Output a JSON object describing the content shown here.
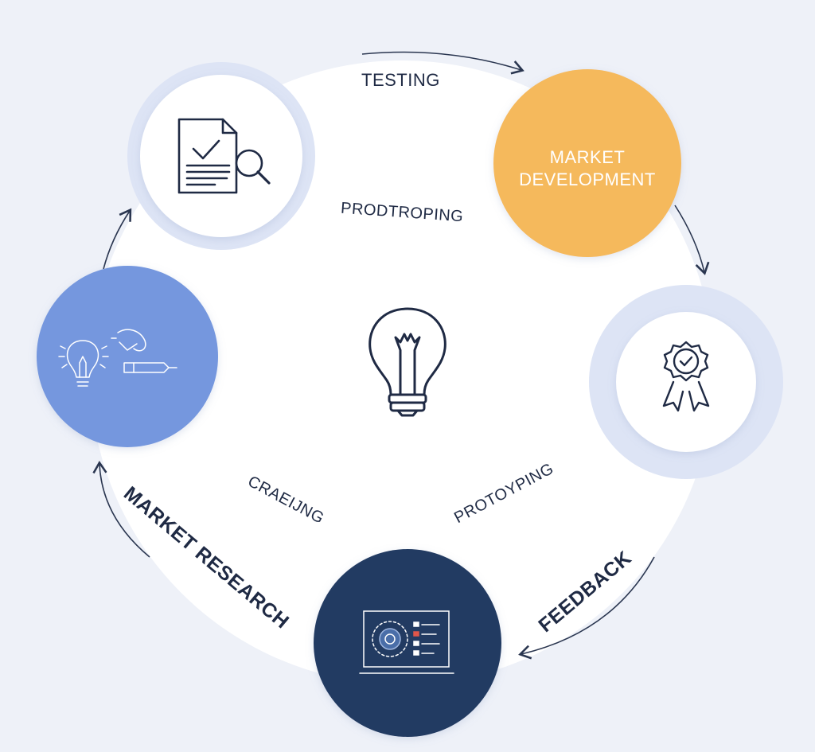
{
  "labels": {
    "testing": "TESTING",
    "prodtroping": "PRODTROPING",
    "craeling": "CRAEIJNG",
    "protoyping": "PROTOYPING",
    "market_research": "MARKET RESEARCH",
    "feedback": "FEEDBACK"
  },
  "nodes": {
    "market_development": {
      "line1": "MARKET",
      "line2": "DEVELOPMENT"
    }
  },
  "icons": {
    "center": "lightbulb-icon",
    "top_left": "document-search-icon",
    "right": "award-badge-icon",
    "left": "lightbulb-sketch-icon",
    "bottom": "dashboard-screen-icon"
  },
  "colors": {
    "background": "#eef1f8",
    "ring": "#ffffff",
    "market_development": "#f5b95c",
    "blue_node": "#7497de",
    "navy_node": "#223a62",
    "ink": "#1f2a44"
  }
}
